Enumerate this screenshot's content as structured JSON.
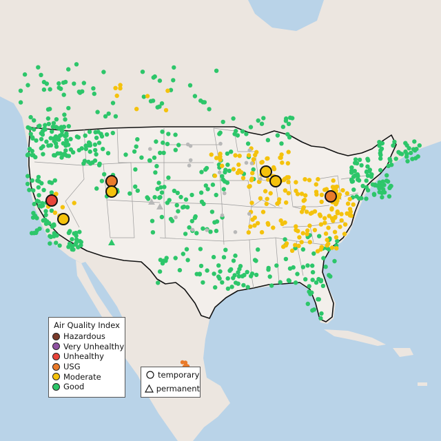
{
  "colors": {
    "hazardous": "#7a3b2a",
    "very_unhealthy": "#8e52a1",
    "unhealthy": "#e8443a",
    "usg": "#e97a2a",
    "moderate": "#f4c20d",
    "good": "#2dc66a",
    "no_data": "#b8b8b8",
    "water": "#b9d3e8",
    "land": "#ece6e0",
    "us_land": "#f2eeea",
    "border": "#111111"
  },
  "aqi_legend": {
    "title": "Air Quality Index",
    "items": [
      {
        "key": "hazardous",
        "label": "Hazardous"
      },
      {
        "key": "very_unhealthy",
        "label": "Very Unhealthy"
      },
      {
        "key": "unhealthy",
        "label": "Unhealthy"
      },
      {
        "key": "usg",
        "label": "USG"
      },
      {
        "key": "moderate",
        "label": "Moderate"
      },
      {
        "key": "good",
        "label": "Good"
      }
    ]
  },
  "type_legend": {
    "items": [
      {
        "symbol": "circle",
        "label": "temporary"
      },
      {
        "symbol": "triangle",
        "label": "permanent"
      }
    ]
  }
}
